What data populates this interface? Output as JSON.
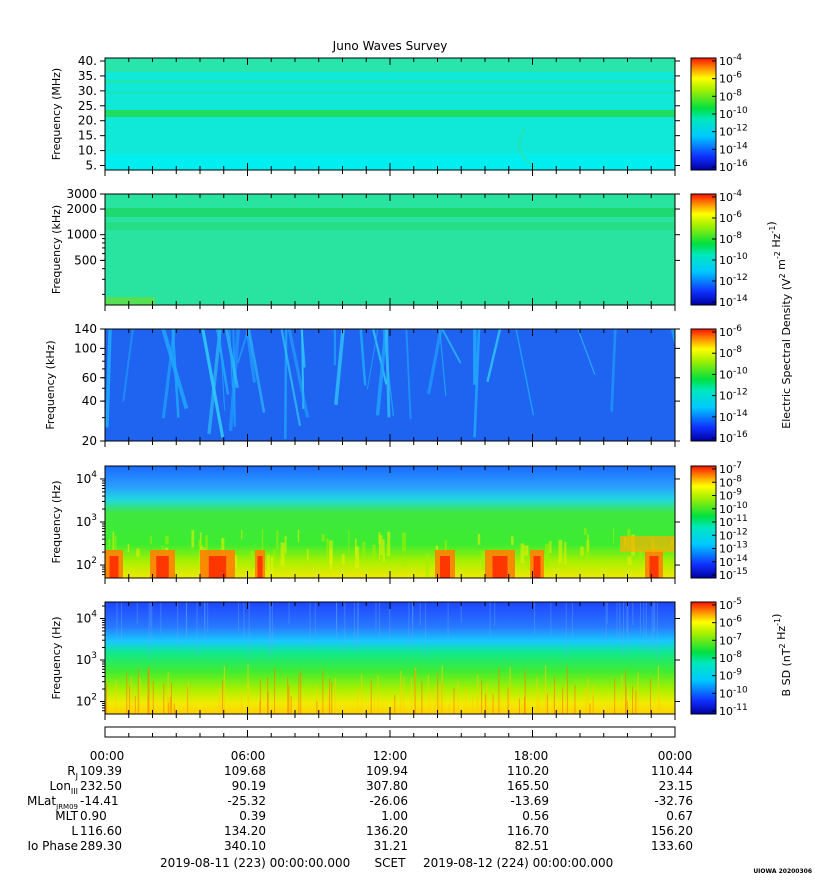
{
  "title": "Juno Waves Survey",
  "stamp": "UIOWA 20200306",
  "colors": {
    "cyan": "#00e8e8",
    "blue": "#1e55ff",
    "green": "#00d060"
  },
  "chart_data": [
    {
      "type": "heatmap",
      "panel": 1,
      "ylabel": "Frequency (MHz)",
      "yscale": "linear",
      "ylim": [
        3.5,
        41
      ],
      "yticks": [
        "40.",
        "35.",
        "30.",
        "25.",
        "20.",
        "15.",
        "10.",
        "5."
      ],
      "ytick_values": [
        40,
        35,
        30,
        25,
        20,
        15,
        10,
        5
      ],
      "colorbar_scale": "log",
      "colorbar_ticks": [
        "10-4",
        "10-6",
        "10-8",
        "10-10",
        "10-12",
        "10-14",
        "10-16"
      ],
      "colorbar_exponents": [
        -4,
        -6,
        -8,
        -10,
        -12,
        -14,
        -16
      ],
      "colorbar_label": ""
    },
    {
      "type": "heatmap",
      "panel": 2,
      "ylabel": "Frequency (kHz)",
      "yscale": "log",
      "ylim": [
        150,
        3000
      ],
      "yticks": [
        "3000",
        "2000",
        "1000",
        "500"
      ],
      "ytick_values": [
        3000,
        2000,
        1000,
        500
      ],
      "colorbar_scale": "log",
      "colorbar_ticks": [
        "10-4",
        "10-6",
        "10-8",
        "10-10",
        "10-12",
        "10-14"
      ],
      "colorbar_exponents": [
        -4,
        -6,
        -8,
        -10,
        -12,
        -14
      ],
      "colorbar_label": "Electric Spectral Density (V2 m-2 Hz-1)"
    },
    {
      "type": "heatmap",
      "panel": 3,
      "ylabel": "Frequency (kHz)",
      "yscale": "log",
      "ylim": [
        20,
        140
      ],
      "yticks": [
        "140",
        "100",
        "60",
        "40",
        "20"
      ],
      "ytick_values": [
        140,
        100,
        60,
        40,
        20
      ],
      "colorbar_scale": "log",
      "colorbar_ticks": [
        "10-6",
        "10-8",
        "10-10",
        "10-12",
        "10-14",
        "10-16"
      ],
      "colorbar_exponents": [
        -6,
        -8,
        -10,
        -12,
        -14,
        -16
      ],
      "colorbar_label": ""
    },
    {
      "type": "heatmap",
      "panel": 4,
      "ylabel": "Frequency (Hz)",
      "yscale": "log",
      "ylim": [
        50,
        20000
      ],
      "yticks": [
        "10^4",
        "10^3",
        "10^2"
      ],
      "ytick_values": [
        10000,
        1000,
        100
      ],
      "colorbar_scale": "log",
      "colorbar_ticks": [
        "10-7",
        "10-8",
        "10-9",
        "10-10",
        "10-11",
        "10-12",
        "10-13",
        "10-14",
        "10-15"
      ],
      "colorbar_exponents": [
        -7,
        -8,
        -9,
        -10,
        -11,
        -12,
        -13,
        -14,
        -15
      ],
      "colorbar_label": ""
    },
    {
      "type": "heatmap",
      "panel": 5,
      "ylabel": "Frequency (Hz)",
      "yscale": "log",
      "ylim": [
        50,
        25000
      ],
      "yticks": [
        "10^4",
        "10^3",
        "10^2"
      ],
      "ytick_values": [
        10000,
        1000,
        100
      ],
      "colorbar_scale": "log",
      "colorbar_ticks": [
        "10-5",
        "10-6",
        "10-7",
        "10-8",
        "10-9",
        "10-10",
        "10-11"
      ],
      "colorbar_exponents": [
        -5,
        -6,
        -7,
        -8,
        -9,
        -10,
        -11
      ],
      "colorbar_label": "B SD (nT2 Hz-1)"
    }
  ],
  "x_axis": {
    "times": [
      "00:00",
      "06:00",
      "12:00",
      "18:00",
      "00:00"
    ],
    "rows": [
      {
        "label": "RJ",
        "values": [
          "109.39",
          "109.68",
          "109.94",
          "110.20",
          "110.44"
        ]
      },
      {
        "label": "LonIII",
        "values": [
          "232.50",
          "90.19",
          "307.80",
          "165.50",
          "23.15"
        ]
      },
      {
        "label": "MLatJRM09",
        "values": [
          "-14.41",
          "-25.32",
          "-26.06",
          "-13.69",
          "-32.76"
        ]
      },
      {
        "label": "MLT",
        "values": [
          "0.90",
          "0.39",
          "1.00",
          "0.56",
          "0.67"
        ]
      },
      {
        "label": "L",
        "values": [
          "116.60",
          "134.20",
          "136.20",
          "116.70",
          "156.20"
        ]
      },
      {
        "label": "Io Phase",
        "values": [
          "289.30",
          "340.10",
          "31.21",
          "82.51",
          "133.60"
        ]
      }
    ],
    "start": "2019-08-11 (223) 00:00:00.000",
    "scet": "SCET",
    "end": "2019-08-12 (224) 00:00:00.000"
  }
}
